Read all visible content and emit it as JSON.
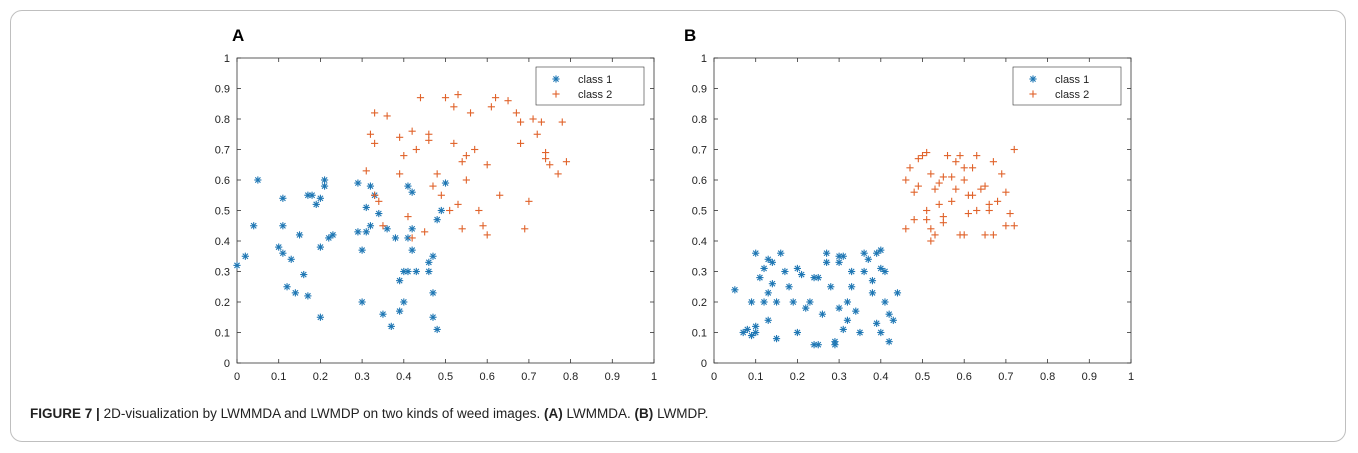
{
  "caption": {
    "figure_label": "FIGURE 7 |",
    "text": "2D-visualization by LWMMDA and LWMDP on two kinds of weed images.",
    "part_a_label": "(A)",
    "part_a_text": "LWMMDA.",
    "part_b_label": "(B)",
    "part_b_text": "LWMDP."
  },
  "panels": [
    {
      "letter": "A"
    },
    {
      "letter": "B"
    }
  ],
  "colors": {
    "class1": "#1f77b4",
    "class2": "#e0622a"
  },
  "chart_data": [
    {
      "type": "scatter",
      "panel": "A",
      "xlim": [
        0,
        1
      ],
      "ylim": [
        0,
        1
      ],
      "xticks": [
        0,
        0.1,
        0.2,
        0.3,
        0.4,
        0.5,
        0.6,
        0.7,
        0.8,
        0.9,
        1
      ],
      "yticks": [
        0,
        0.1,
        0.2,
        0.3,
        0.4,
        0.5,
        0.6,
        0.7,
        0.8,
        0.9,
        1
      ],
      "grid": false,
      "legend": "top-right",
      "series": [
        {
          "name": "class 1",
          "marker": "asterisk",
          "x": [
            0.0,
            0.02,
            0.04,
            0.05,
            0.1,
            0.11,
            0.11,
            0.11,
            0.12,
            0.13,
            0.14,
            0.15,
            0.16,
            0.17,
            0.17,
            0.18,
            0.19,
            0.2,
            0.2,
            0.2,
            0.21,
            0.21,
            0.22,
            0.23,
            0.29,
            0.29,
            0.3,
            0.3,
            0.31,
            0.31,
            0.32,
            0.32,
            0.33,
            0.34,
            0.35,
            0.36,
            0.37,
            0.38,
            0.39,
            0.39,
            0.4,
            0.4,
            0.41,
            0.41,
            0.41,
            0.42,
            0.42,
            0.42,
            0.43,
            0.46,
            0.46,
            0.47,
            0.47,
            0.47,
            0.48,
            0.48,
            0.49,
            0.5
          ],
          "y": [
            0.32,
            0.35,
            0.45,
            0.6,
            0.38,
            0.36,
            0.45,
            0.54,
            0.25,
            0.34,
            0.23,
            0.42,
            0.29,
            0.22,
            0.55,
            0.55,
            0.52,
            0.15,
            0.38,
            0.54,
            0.6,
            0.58,
            0.41,
            0.42,
            0.43,
            0.59,
            0.37,
            0.2,
            0.51,
            0.43,
            0.58,
            0.45,
            0.55,
            0.49,
            0.16,
            0.44,
            0.12,
            0.41,
            0.17,
            0.27,
            0.2,
            0.3,
            0.58,
            0.41,
            0.3,
            0.56,
            0.44,
            0.37,
            0.3,
            0.3,
            0.33,
            0.35,
            0.23,
            0.15,
            0.11,
            0.47,
            0.5,
            0.59
          ]
        },
        {
          "name": "class 2",
          "marker": "plus",
          "x": [
            0.31,
            0.32,
            0.33,
            0.33,
            0.33,
            0.34,
            0.35,
            0.36,
            0.39,
            0.39,
            0.4,
            0.41,
            0.42,
            0.42,
            0.43,
            0.44,
            0.45,
            0.46,
            0.46,
            0.47,
            0.48,
            0.49,
            0.5,
            0.51,
            0.52,
            0.52,
            0.53,
            0.53,
            0.54,
            0.54,
            0.55,
            0.55,
            0.56,
            0.57,
            0.58,
            0.59,
            0.6,
            0.6,
            0.61,
            0.62,
            0.63,
            0.65,
            0.67,
            0.68,
            0.68,
            0.69,
            0.7,
            0.71,
            0.72,
            0.73,
            0.74,
            0.74,
            0.75,
            0.77,
            0.78,
            0.79
          ],
          "y": [
            0.63,
            0.75,
            0.72,
            0.82,
            0.55,
            0.53,
            0.45,
            0.81,
            0.74,
            0.62,
            0.68,
            0.48,
            0.76,
            0.41,
            0.7,
            0.87,
            0.43,
            0.75,
            0.73,
            0.58,
            0.62,
            0.55,
            0.87,
            0.5,
            0.84,
            0.72,
            0.52,
            0.88,
            0.66,
            0.44,
            0.68,
            0.6,
            0.82,
            0.7,
            0.5,
            0.45,
            0.65,
            0.42,
            0.84,
            0.87,
            0.55,
            0.86,
            0.82,
            0.72,
            0.79,
            0.44,
            0.53,
            0.8,
            0.75,
            0.79,
            0.69,
            0.67,
            0.65,
            0.62,
            0.79,
            0.66
          ]
        }
      ]
    },
    {
      "type": "scatter",
      "panel": "B",
      "xlim": [
        0,
        1
      ],
      "ylim": [
        0,
        1
      ],
      "xticks": [
        0,
        0.1,
        0.2,
        0.3,
        0.4,
        0.5,
        0.6,
        0.7,
        0.8,
        0.9,
        1
      ],
      "yticks": [
        0,
        0.1,
        0.2,
        0.3,
        0.4,
        0.5,
        0.6,
        0.7,
        0.8,
        0.9,
        1
      ],
      "grid": false,
      "legend": "top-right",
      "series": [
        {
          "name": "class 1",
          "marker": "asterisk",
          "x": [
            0.05,
            0.07,
            0.08,
            0.09,
            0.09,
            0.1,
            0.1,
            0.1,
            0.11,
            0.12,
            0.12,
            0.13,
            0.13,
            0.13,
            0.14,
            0.14,
            0.15,
            0.15,
            0.16,
            0.17,
            0.18,
            0.19,
            0.2,
            0.2,
            0.21,
            0.22,
            0.23,
            0.24,
            0.24,
            0.25,
            0.25,
            0.26,
            0.27,
            0.27,
            0.28,
            0.29,
            0.29,
            0.3,
            0.3,
            0.3,
            0.31,
            0.31,
            0.32,
            0.32,
            0.33,
            0.33,
            0.34,
            0.35,
            0.36,
            0.36,
            0.37,
            0.38,
            0.38,
            0.39,
            0.39,
            0.4,
            0.4,
            0.4,
            0.41,
            0.41,
            0.42,
            0.42,
            0.43,
            0.44
          ],
          "y": [
            0.24,
            0.1,
            0.11,
            0.09,
            0.2,
            0.1,
            0.36,
            0.12,
            0.28,
            0.2,
            0.31,
            0.34,
            0.14,
            0.23,
            0.33,
            0.26,
            0.2,
            0.08,
            0.36,
            0.3,
            0.25,
            0.2,
            0.31,
            0.1,
            0.29,
            0.18,
            0.2,
            0.06,
            0.28,
            0.06,
            0.28,
            0.16,
            0.33,
            0.36,
            0.25,
            0.07,
            0.06,
            0.33,
            0.18,
            0.35,
            0.35,
            0.11,
            0.2,
            0.14,
            0.3,
            0.25,
            0.17,
            0.1,
            0.3,
            0.36,
            0.34,
            0.23,
            0.27,
            0.36,
            0.13,
            0.1,
            0.31,
            0.37,
            0.3,
            0.2,
            0.16,
            0.07,
            0.14,
            0.23
          ]
        },
        {
          "name": "class 2",
          "marker": "plus",
          "x": [
            0.46,
            0.46,
            0.47,
            0.48,
            0.48,
            0.49,
            0.49,
            0.5,
            0.51,
            0.51,
            0.51,
            0.52,
            0.52,
            0.52,
            0.53,
            0.53,
            0.54,
            0.54,
            0.55,
            0.55,
            0.55,
            0.56,
            0.57,
            0.57,
            0.58,
            0.58,
            0.59,
            0.59,
            0.6,
            0.6,
            0.6,
            0.61,
            0.61,
            0.62,
            0.62,
            0.63,
            0.63,
            0.64,
            0.65,
            0.65,
            0.66,
            0.66,
            0.67,
            0.67,
            0.68,
            0.69,
            0.7,
            0.7,
            0.71,
            0.72,
            0.72
          ],
          "y": [
            0.44,
            0.6,
            0.64,
            0.47,
            0.56,
            0.58,
            0.67,
            0.68,
            0.5,
            0.47,
            0.69,
            0.44,
            0.62,
            0.4,
            0.42,
            0.57,
            0.52,
            0.59,
            0.61,
            0.46,
            0.48,
            0.68,
            0.53,
            0.61,
            0.66,
            0.57,
            0.42,
            0.68,
            0.6,
            0.42,
            0.64,
            0.49,
            0.55,
            0.64,
            0.55,
            0.68,
            0.5,
            0.57,
            0.42,
            0.58,
            0.52,
            0.5,
            0.66,
            0.42,
            0.53,
            0.62,
            0.45,
            0.56,
            0.49,
            0.7,
            0.45
          ]
        }
      ]
    }
  ]
}
